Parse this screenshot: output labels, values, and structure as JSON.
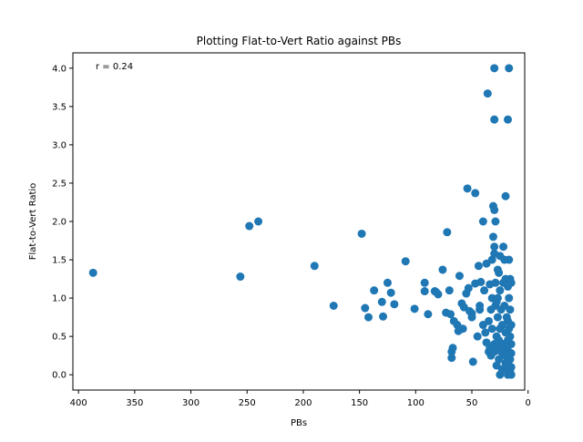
{
  "chart_data": {
    "type": "scatter",
    "title": "Plotting Flat-to-Vert Ratio against PBs",
    "xlabel": "PBs",
    "ylabel": "Flat-to-Vert Ratio",
    "annotation": "r = 0.24",
    "x_inverted": true,
    "xlim": [
      405,
      3
    ],
    "ylim": [
      -0.2,
      4.2
    ],
    "x_ticks": [
      400,
      350,
      300,
      250,
      200,
      150,
      100,
      50,
      0
    ],
    "y_ticks": [
      0.0,
      0.5,
      1.0,
      1.5,
      2.0,
      2.5,
      3.0,
      3.5,
      4.0
    ],
    "x_tick_labels": [
      "400",
      "350",
      "300",
      "250",
      "200",
      "150",
      "100",
      "50",
      "0"
    ],
    "y_tick_labels": [
      "0.0",
      "0.5",
      "1.0",
      "1.5",
      "2.0",
      "2.5",
      "3.0",
      "3.5",
      "4.0"
    ],
    "marker_color": "#1f77b4",
    "grid": false,
    "points": [
      [
        387,
        1.33
      ],
      [
        256,
        1.28
      ],
      [
        248,
        1.94
      ],
      [
        240,
        2.0
      ],
      [
        190,
        1.42
      ],
      [
        173,
        0.9
      ],
      [
        148,
        1.84
      ],
      [
        145,
        0.87
      ],
      [
        142,
        0.75
      ],
      [
        137,
        1.1
      ],
      [
        130,
        0.95
      ],
      [
        129,
        0.76
      ],
      [
        125,
        1.2
      ],
      [
        122,
        1.07
      ],
      [
        119,
        0.92
      ],
      [
        109,
        1.48
      ],
      [
        101,
        0.86
      ],
      [
        92,
        1.2
      ],
      [
        92,
        1.09
      ],
      [
        89,
        0.79
      ],
      [
        83,
        1.09
      ],
      [
        82,
        1.08
      ],
      [
        80,
        1.05
      ],
      [
        76,
        1.37
      ],
      [
        73,
        0.81
      ],
      [
        72,
        1.86
      ],
      [
        70,
        1.1
      ],
      [
        69,
        0.79
      ],
      [
        68,
        0.3
      ],
      [
        68,
        0.22
      ],
      [
        67,
        0.35
      ],
      [
        66,
        0.7
      ],
      [
        63,
        0.65
      ],
      [
        62,
        0.57
      ],
      [
        61,
        1.29
      ],
      [
        59,
        0.93
      ],
      [
        58,
        0.6
      ],
      [
        57,
        0.88
      ],
      [
        55,
        1.06
      ],
      [
        54,
        2.43
      ],
      [
        53,
        1.13
      ],
      [
        52,
        0.83
      ],
      [
        50,
        0.8
      ],
      [
        50,
        0.75
      ],
      [
        49,
        0.17
      ],
      [
        47,
        2.37
      ],
      [
        47,
        1.19
      ],
      [
        45,
        0.5
      ],
      [
        44,
        1.42
      ],
      [
        43,
        0.9
      ],
      [
        43,
        0.85
      ],
      [
        42,
        1.21
      ],
      [
        40,
        2.0
      ],
      [
        40,
        0.65
      ],
      [
        39,
        1.1
      ],
      [
        38,
        0.55
      ],
      [
        37,
        0.42
      ],
      [
        37,
        1.45
      ],
      [
        36,
        3.67
      ],
      [
        35,
        0.7
      ],
      [
        35,
        0.3
      ],
      [
        34,
        0.35
      ],
      [
        34,
        1.18
      ],
      [
        33,
        0.85
      ],
      [
        33,
        0.25
      ],
      [
        32,
        1.5
      ],
      [
        32,
        1.0
      ],
      [
        32,
        0.6
      ],
      [
        31,
        2.2
      ],
      [
        31,
        1.8
      ],
      [
        30,
        4.0
      ],
      [
        30,
        3.33
      ],
      [
        30,
        2.15
      ],
      [
        30,
        1.67
      ],
      [
        30,
        1.58
      ],
      [
        30,
        0.4
      ],
      [
        30,
        0.3
      ],
      [
        29,
        2.0
      ],
      [
        29,
        1.2
      ],
      [
        29,
        0.9
      ],
      [
        28,
        0.95
      ],
      [
        28,
        0.5
      ],
      [
        28,
        0.12
      ],
      [
        27,
        1.37
      ],
      [
        27,
        1.0
      ],
      [
        27,
        0.75
      ],
      [
        27,
        0.38
      ],
      [
        26,
        1.33
      ],
      [
        26,
        0.45
      ],
      [
        26,
        0.2
      ],
      [
        25,
        1.55
      ],
      [
        25,
        1.1
      ],
      [
        25,
        0.6
      ],
      [
        25,
        0.0
      ],
      [
        24,
        0.85
      ],
      [
        24,
        0.3
      ],
      [
        23,
        0.65
      ],
      [
        23,
        0.07
      ],
      [
        22,
        1.67
      ],
      [
        22,
        1.2
      ],
      [
        22,
        0.4
      ],
      [
        21,
        1.5
      ],
      [
        21,
        0.9
      ],
      [
        21,
        0.25
      ],
      [
        20,
        2.33
      ],
      [
        20,
        1.25
      ],
      [
        20,
        0.55
      ],
      [
        20,
        0.15
      ],
      [
        19,
        0.75
      ],
      [
        19,
        0.35
      ],
      [
        19,
        0.1
      ],
      [
        18,
        3.33
      ],
      [
        18,
        1.15
      ],
      [
        18,
        0.7
      ],
      [
        18,
        0.45
      ],
      [
        18,
        0.0
      ],
      [
        17,
        4.0
      ],
      [
        17,
        1.5
      ],
      [
        17,
        1.0
      ],
      [
        17,
        0.6
      ],
      [
        17,
        0.3
      ],
      [
        16,
        1.25
      ],
      [
        16,
        0.85
      ],
      [
        16,
        0.5
      ],
      [
        16,
        0.2
      ],
      [
        16,
        0.05
      ],
      [
        15,
        1.2
      ],
      [
        15,
        0.65
      ],
      [
        15,
        0.4
      ],
      [
        15,
        0.28
      ],
      [
        15,
        0.1
      ],
      [
        15,
        0.0
      ]
    ]
  }
}
